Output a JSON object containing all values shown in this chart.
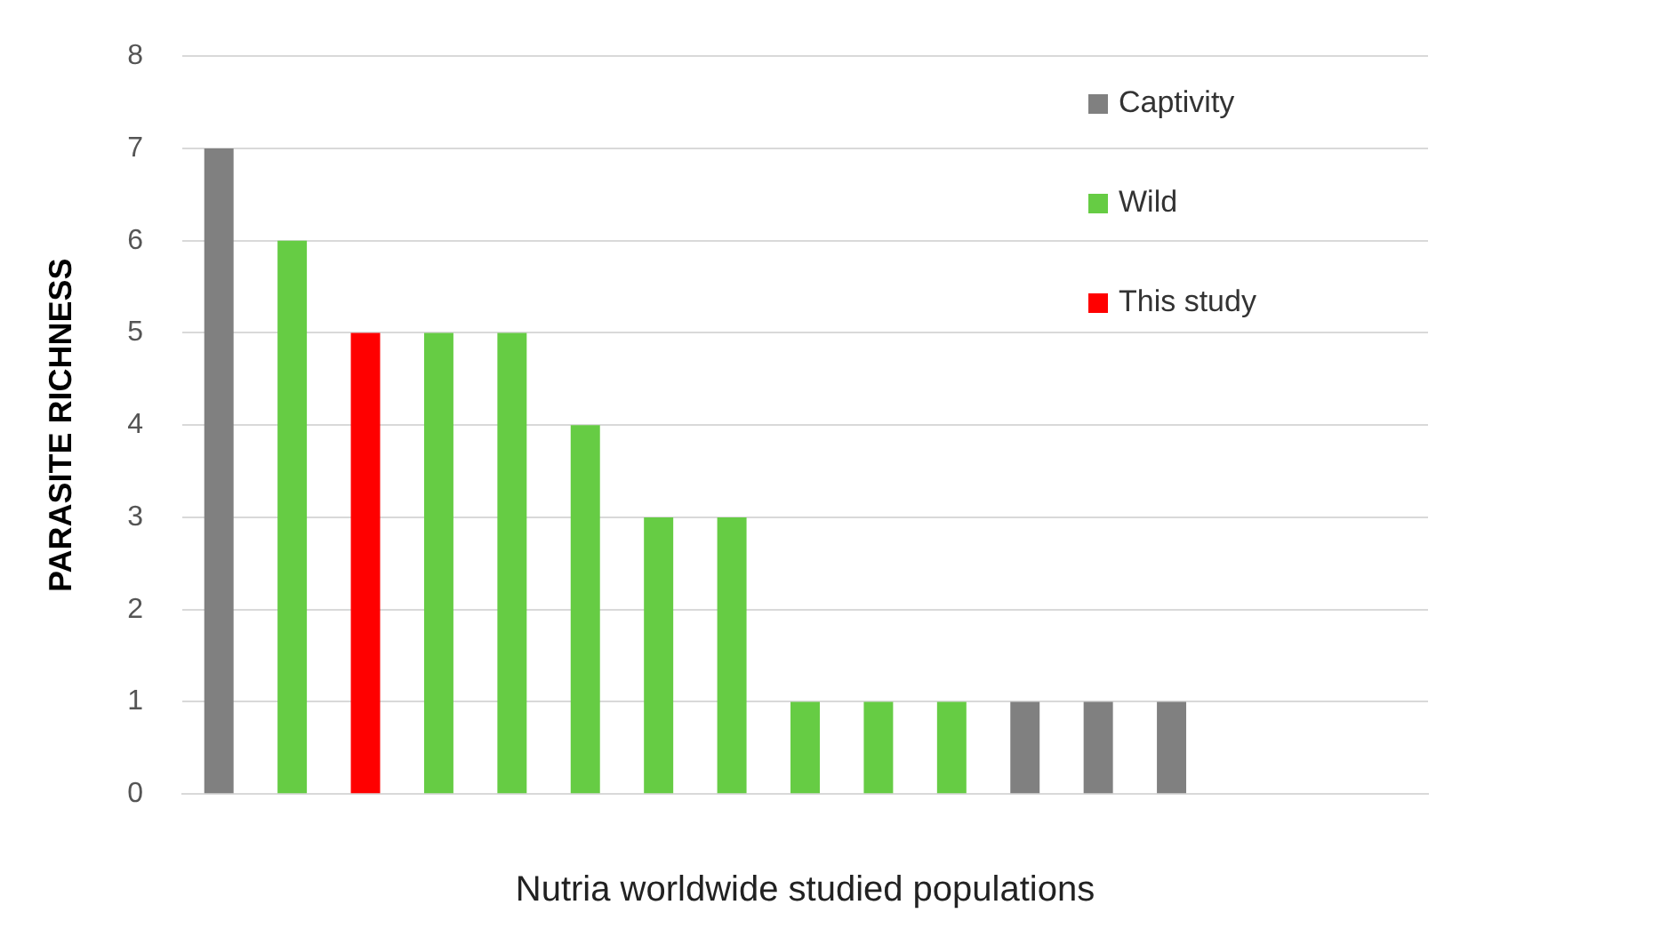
{
  "chart_data": {
    "type": "bar",
    "xlabel": "Nutria worldwide studied populations",
    "ylabel": "PARASITE RICHNESS",
    "categories": [
      null,
      null,
      null,
      null,
      null,
      null,
      null,
      null,
      null,
      null,
      null,
      null,
      null,
      null,
      null,
      null,
      null
    ],
    "series": [
      {
        "name": "Captivity",
        "color": "#808080",
        "values": [
          7,
          null,
          null,
          null,
          null,
          null,
          null,
          null,
          null,
          null,
          null,
          1,
          1,
          1,
          null,
          null,
          null
        ]
      },
      {
        "name": "Wild",
        "color": "#66cc44",
        "values": [
          null,
          6,
          null,
          5,
          5,
          4,
          3,
          3,
          1,
          1,
          1,
          null,
          null,
          null,
          null,
          null,
          null
        ]
      },
      {
        "name": "This study",
        "color": "#ff0000",
        "values": [
          null,
          null,
          5,
          null,
          null,
          null,
          null,
          null,
          null,
          null,
          null,
          null,
          null,
          null,
          null,
          null,
          null
        ]
      }
    ],
    "ylim": [
      0,
      8
    ],
    "yticks": [
      0,
      1,
      2,
      3,
      4,
      5,
      6,
      7,
      8
    ],
    "grid": "y",
    "legend": "top right"
  }
}
